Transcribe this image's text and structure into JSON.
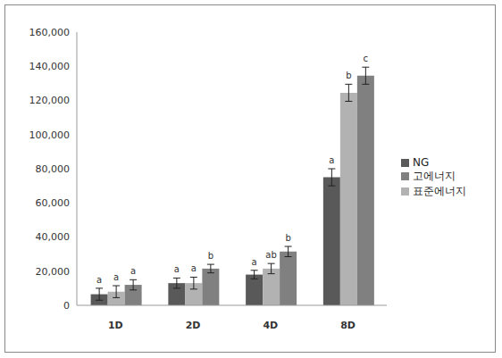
{
  "chart_data": {
    "type": "bar",
    "categories": [
      "1D",
      "2D",
      "4D",
      "8D"
    ],
    "series": [
      {
        "name": "NG",
        "color": "#595959",
        "values": [
          6500,
          13000,
          18000,
          75000
        ],
        "error": [
          3500,
          3000,
          2500,
          5000
        ],
        "letters": [
          "a",
          "a",
          "a",
          "a"
        ]
      },
      {
        "name": "표준에너지",
        "color": "#b2b2b2",
        "values": [
          8000,
          13000,
          21500,
          124500
        ],
        "error": [
          3500,
          3500,
          3000,
          5000
        ],
        "letters": [
          "a",
          "a",
          "ab",
          "b"
        ]
      },
      {
        "name": "고에너지",
        "color": "#808080",
        "values": [
          12000,
          21500,
          31500,
          134500
        ],
        "error": [
          3000,
          2500,
          3000,
          5000
        ],
        "letters": [
          "a",
          "b",
          "b",
          "c"
        ]
      }
    ],
    "ylim": [
      0,
      160000
    ],
    "yticks": [
      0,
      {
        "value": 20000,
        "label": "20,000"
      },
      {
        "value": 40000,
        "label": "40,000"
      },
      {
        "value": 60000,
        "label": "60,000"
      },
      {
        "value": 80000,
        "label": "80,000"
      },
      {
        "value": 100000,
        "label": "100,000"
      },
      {
        "value": 120000,
        "label": "120,000"
      },
      {
        "value": 140000,
        "label": "140,000"
      },
      {
        "value": 160000,
        "label": "160,000"
      }
    ],
    "grid": false,
    "legend": "right"
  }
}
